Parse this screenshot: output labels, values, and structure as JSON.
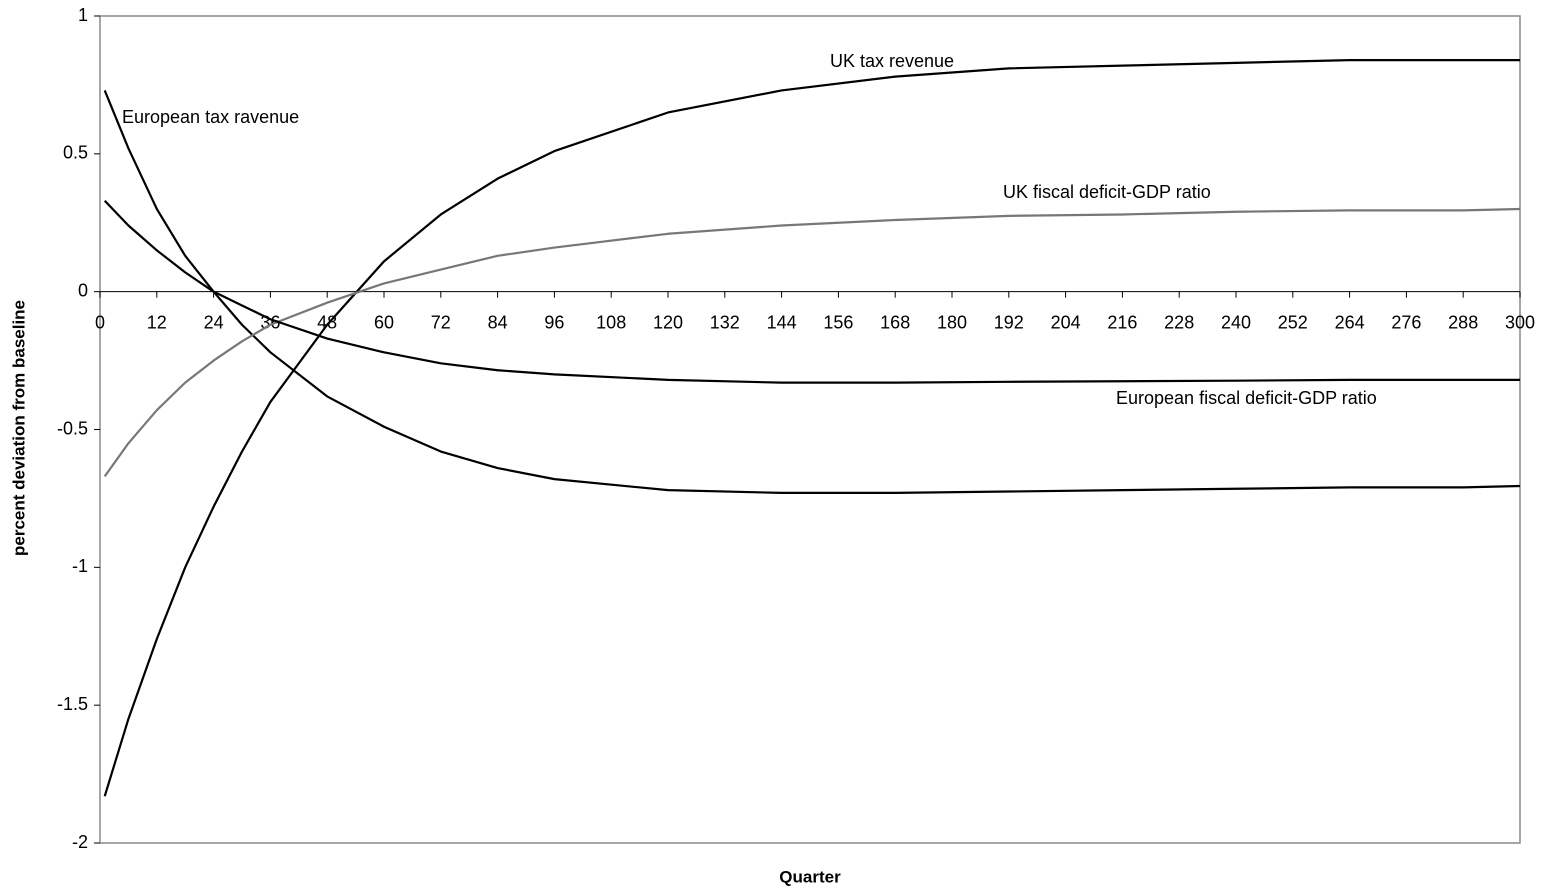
{
  "chart_data": {
    "type": "line",
    "x_label": "Quarter",
    "y_label": "percent deviation from baseline",
    "x": [
      1,
      6,
      12,
      18,
      24,
      30,
      36,
      48,
      60,
      72,
      84,
      96,
      120,
      144,
      168,
      192,
      216,
      240,
      264,
      288,
      300
    ],
    "series": [
      {
        "name": "UK tax revenue",
        "color": "#000000",
        "values": [
          -1.83,
          -1.55,
          -1.26,
          -1.0,
          -0.78,
          -0.58,
          -0.4,
          -0.12,
          0.11,
          0.28,
          0.41,
          0.51,
          0.65,
          0.73,
          0.78,
          0.81,
          0.82,
          0.83,
          0.84,
          0.84,
          0.84
        ]
      },
      {
        "name": "European tax ravenue",
        "color": "#000000",
        "values": [
          0.73,
          0.52,
          0.3,
          0.13,
          0.0,
          -0.12,
          -0.22,
          -0.38,
          -0.49,
          -0.58,
          -0.64,
          -0.68,
          -0.72,
          -0.73,
          -0.73,
          -0.725,
          -0.72,
          -0.715,
          -0.71,
          -0.71,
          -0.705
        ]
      },
      {
        "name": "UK fiscal deficit-GDP ratio",
        "color": "#777777",
        "values": [
          -0.67,
          -0.55,
          -0.43,
          -0.33,
          -0.25,
          -0.18,
          -0.12,
          -0.04,
          0.03,
          0.08,
          0.13,
          0.16,
          0.21,
          0.24,
          0.26,
          0.275,
          0.28,
          0.29,
          0.295,
          0.295,
          0.3
        ]
      },
      {
        "name": "European fiscal deficit-GDP ratio",
        "color": "#000000",
        "values": [
          0.33,
          0.24,
          0.15,
          0.07,
          0.0,
          -0.05,
          -0.1,
          -0.17,
          -0.22,
          -0.26,
          -0.285,
          -0.3,
          -0.32,
          -0.33,
          -0.33,
          -0.327,
          -0.325,
          -0.323,
          -0.32,
          -0.32,
          -0.32
        ]
      }
    ],
    "xlim": [
      0,
      300
    ],
    "xticks": [
      0,
      12,
      24,
      36,
      48,
      60,
      72,
      84,
      96,
      108,
      120,
      132,
      144,
      156,
      168,
      180,
      192,
      204,
      216,
      228,
      240,
      252,
      264,
      276,
      288,
      300
    ],
    "ylim": [
      -2,
      1
    ],
    "yticks": [
      -2,
      -1.5,
      -1,
      -0.5,
      0,
      0.5,
      1
    ],
    "grid": false
  }
}
